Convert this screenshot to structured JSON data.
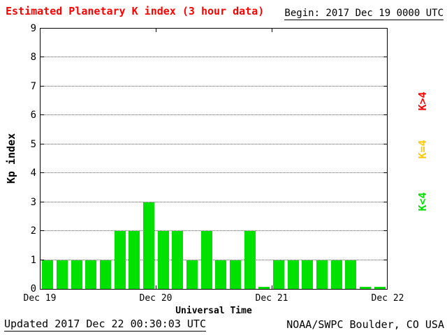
{
  "header": {
    "title": "Estimated Planetary K index (3 hour data)",
    "begin": "Begin: 2017 Dec 19 0000 UTC"
  },
  "footer": {
    "updated": "Updated 2017 Dec 22 00:30:03 UTC",
    "source": "NOAA/SWPC Boulder, CO USA"
  },
  "legend": [
    {
      "label": "K>4",
      "color": "#ff0000"
    },
    {
      "label": "K=4",
      "color": "#ffc800"
    },
    {
      "label": "K<4",
      "color": "#00e100"
    }
  ],
  "chart_data": {
    "type": "bar",
    "title": "Estimated Planetary K index (3 hour data)",
    "xlabel": "Universal Time",
    "ylabel": "Kp index",
    "begin": "2017 Dec 19 0000 UTC",
    "bin_hours": 3,
    "ylim": [
      0,
      9
    ],
    "y_ticks": [
      0,
      1,
      2,
      3,
      4,
      5,
      6,
      7,
      8,
      9
    ],
    "x_ticks": [
      "Dec 19",
      "Dec 20",
      "Dec 21",
      "Dec 22"
    ],
    "grid": "horizontal-dotted",
    "legend_position": "right-outside",
    "values": [
      1,
      1,
      1,
      1,
      1,
      2,
      2,
      3,
      2,
      2,
      1,
      2,
      1,
      1,
      2,
      0,
      1,
      1,
      1,
      1,
      1,
      1,
      0,
      0
    ],
    "colors": {
      "below4": "#00e100",
      "equal4": "#ffc800",
      "above4": "#ff0000"
    }
  }
}
